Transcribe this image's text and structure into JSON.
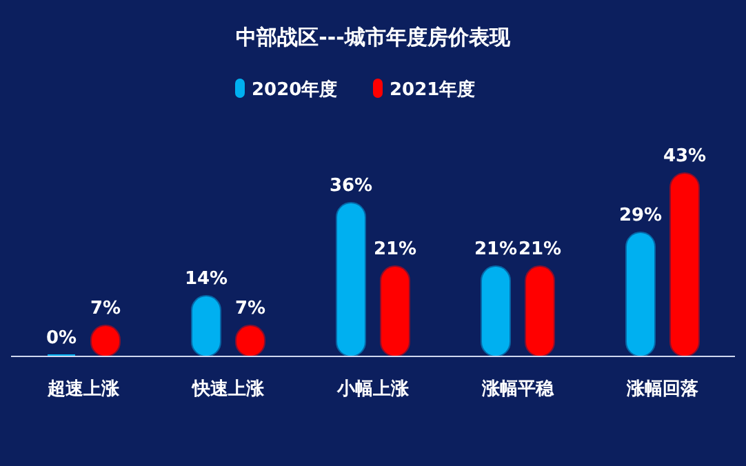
{
  "chart_data": {
    "type": "bar",
    "title": "中部战区---城市年度房价表现",
    "categories": [
      "超速上涨",
      "快速上涨",
      "小幅上涨",
      "涨幅平稳",
      "涨幅回落"
    ],
    "series": [
      {
        "name": "2020年度",
        "color": "#00b0f0",
        "values": [
          0,
          14,
          36,
          21,
          29
        ],
        "value_labels": [
          "0%",
          "14%",
          "36%",
          "21%",
          "29%"
        ]
      },
      {
        "name": "2021年度",
        "color": "#ff0000",
        "values": [
          7,
          7,
          21,
          21,
          43
        ],
        "value_labels": [
          "7%",
          "7%",
          "21%",
          "21%",
          "43%"
        ]
      }
    ],
    "ylim": [
      0,
      43
    ],
    "legend": "top",
    "grid": false
  }
}
